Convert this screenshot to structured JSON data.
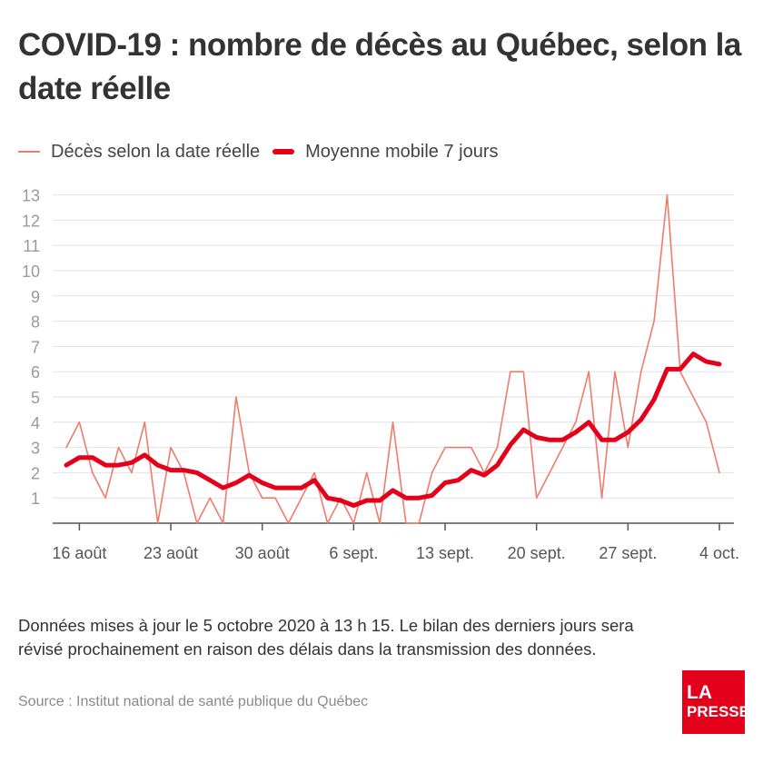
{
  "title": "COVID-19 : nombre de décès au Québec, selon la date réelle",
  "note": "Données mises à jour le 5 octobre 2020 à 13 h 15. Le bilan des derniers jours sera révisé prochainement en raison des délais dans la transmission des données.",
  "source": "Source : Institut national de santé publique du Québec",
  "logo": {
    "line1": "LA",
    "line2": "PRESSE"
  },
  "colors": {
    "daily": "#f07b6a",
    "average": "#e4001b",
    "grid": "#e2e2e2",
    "tick_text": "#9a9a9a"
  },
  "chart_data": {
    "type": "line",
    "x_start": "2020-08-15",
    "x": [
      "2020-08-15",
      "2020-08-16",
      "2020-08-17",
      "2020-08-18",
      "2020-08-19",
      "2020-08-20",
      "2020-08-21",
      "2020-08-22",
      "2020-08-23",
      "2020-08-24",
      "2020-08-25",
      "2020-08-26",
      "2020-08-27",
      "2020-08-28",
      "2020-08-29",
      "2020-08-30",
      "2020-08-31",
      "2020-09-01",
      "2020-09-02",
      "2020-09-03",
      "2020-09-04",
      "2020-09-05",
      "2020-09-06",
      "2020-09-07",
      "2020-09-08",
      "2020-09-09",
      "2020-09-10",
      "2020-09-11",
      "2020-09-12",
      "2020-09-13",
      "2020-09-14",
      "2020-09-15",
      "2020-09-16",
      "2020-09-17",
      "2020-09-18",
      "2020-09-19",
      "2020-09-20",
      "2020-09-21",
      "2020-09-22",
      "2020-09-23",
      "2020-09-24",
      "2020-09-25",
      "2020-09-26",
      "2020-09-27",
      "2020-09-28",
      "2020-09-29",
      "2020-09-30",
      "2020-10-01",
      "2020-10-02",
      "2020-10-03",
      "2020-10-04"
    ],
    "series": [
      {
        "name": "Décès selon la date réelle",
        "values": [
          3,
          4,
          2,
          1,
          3,
          2,
          4,
          0,
          3,
          2,
          0,
          1,
          0,
          5,
          2,
          1,
          1,
          0,
          1,
          2,
          0,
          1,
          0,
          2,
          0,
          4,
          0,
          0,
          2,
          3,
          3,
          3,
          2,
          3,
          6,
          6,
          1,
          2,
          3,
          4,
          6,
          1,
          6,
          3,
          6,
          8,
          13,
          6,
          5,
          4,
          2
        ]
      },
      {
        "name": "Moyenne mobile 7 jours",
        "values": [
          2.3,
          2.6,
          2.6,
          2.3,
          2.3,
          2.4,
          2.7,
          2.3,
          2.1,
          2.1,
          2.0,
          1.7,
          1.4,
          1.6,
          1.9,
          1.6,
          1.4,
          1.4,
          1.4,
          1.7,
          1.0,
          0.9,
          0.7,
          0.9,
          0.9,
          1.3,
          1.0,
          1.0,
          1.1,
          1.6,
          1.7,
          2.1,
          1.9,
          2.3,
          3.1,
          3.7,
          3.4,
          3.3,
          3.3,
          3.6,
          4.0,
          3.3,
          3.3,
          3.6,
          4.1,
          4.9,
          6.1,
          6.1,
          6.7,
          6.4,
          6.3
        ]
      }
    ],
    "y_ticks": [
      1,
      2,
      3,
      4,
      5,
      6,
      7,
      8,
      9,
      10,
      11,
      12,
      13
    ],
    "ylim": [
      0,
      13
    ],
    "x_ticks": [
      {
        "date": "2020-08-16",
        "label": "16 août"
      },
      {
        "date": "2020-08-23",
        "label": "23 août"
      },
      {
        "date": "2020-08-30",
        "label": "30 août"
      },
      {
        "date": "2020-09-06",
        "label": "6 sept."
      },
      {
        "date": "2020-09-13",
        "label": "13 sept."
      },
      {
        "date": "2020-09-20",
        "label": "20 sept."
      },
      {
        "date": "2020-09-27",
        "label": "27 sept."
      },
      {
        "date": "2020-10-04",
        "label": "4 oct."
      }
    ],
    "grid": true,
    "legend_position": "top-left"
  }
}
